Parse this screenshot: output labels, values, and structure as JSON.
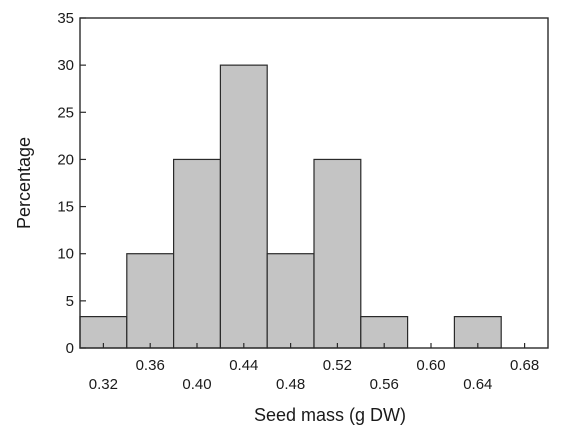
{
  "chart_data": {
    "type": "bar",
    "title": "",
    "xlabel": "Seed mass (g DW)",
    "ylabel": "Percentage",
    "ylim": [
      0,
      35
    ],
    "xlim": [
      0.3,
      0.7
    ],
    "bin_width": 0.04,
    "bins": [
      {
        "start": 0.3,
        "end": 0.34,
        "value": 3.33
      },
      {
        "start": 0.34,
        "end": 0.38,
        "value": 10
      },
      {
        "start": 0.38,
        "end": 0.42,
        "value": 20
      },
      {
        "start": 0.42,
        "end": 0.46,
        "value": 30
      },
      {
        "start": 0.46,
        "end": 0.5,
        "value": 10
      },
      {
        "start": 0.5,
        "end": 0.54,
        "value": 20
      },
      {
        "start": 0.54,
        "end": 0.58,
        "value": 3.33
      },
      {
        "start": 0.58,
        "end": 0.62,
        "value": 0
      },
      {
        "start": 0.62,
        "end": 0.66,
        "value": 3.33
      }
    ],
    "x_ticks_lower": [
      "0.32",
      "0.40",
      "0.48",
      "0.56",
      "0.64"
    ],
    "x_ticks_upper": [
      "0.36",
      "0.44",
      "0.52",
      "0.60",
      "0.68"
    ],
    "y_ticks": [
      "0",
      "5",
      "10",
      "15",
      "20",
      "25",
      "30",
      "35"
    ],
    "grid": false,
    "colors": {
      "bar_fill": "#c4c4c4",
      "bar_stroke": "#2a2a2a"
    }
  }
}
